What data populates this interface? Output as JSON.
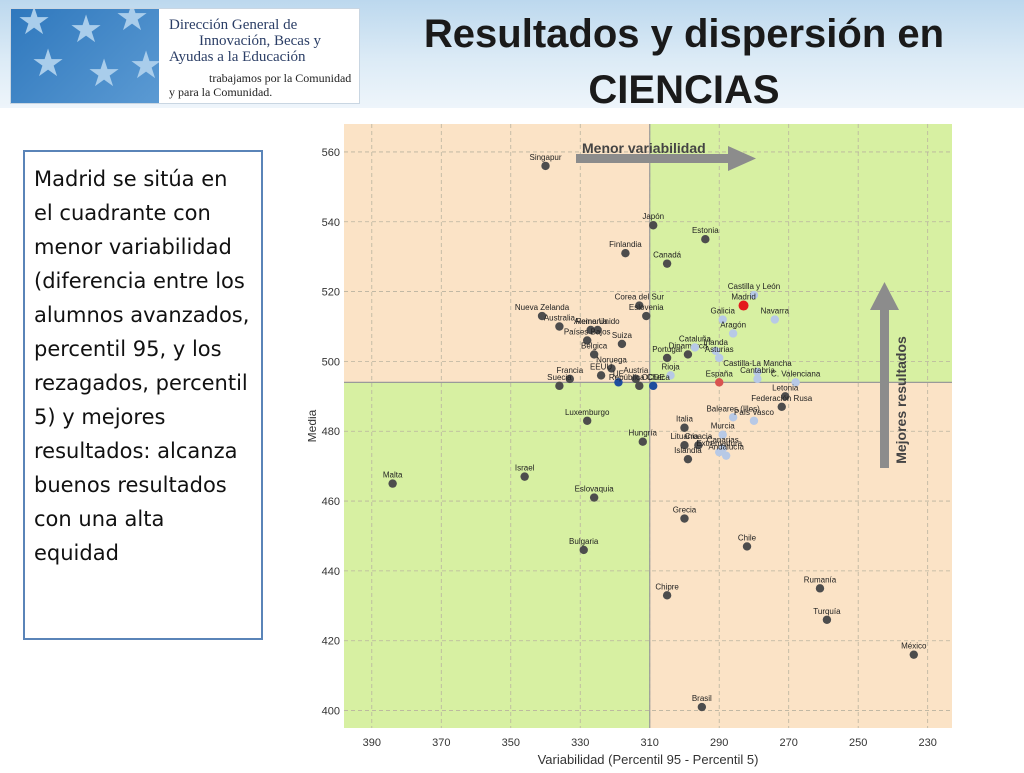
{
  "header": {
    "org_line1": "Dirección General de",
    "org_line2": "Innovación, Becas y",
    "org_line3": "Ayudas a la Educación",
    "org_line4": "trabajamos por la Comunidad",
    "org_line5": "y para la Comunidad.",
    "title_line1": "Resultados y dispersión en",
    "title_line2": "CIENCIAS"
  },
  "textbox": {
    "text": "Madrid se sitúa en el cuadrante con menor variabilidad (diferencia entre los alumnos avanzados, percentil 95, y los rezagados, percentil 5) y mejores resultados: alcanza buenos resultados con una alta equidad"
  },
  "colors": {
    "quadrant_best": "#d7f0a2",
    "quadrant_other": "#fbe3c6",
    "point": "#4d4d4d",
    "point_oecd": "#1f4e9e",
    "point_region": "#b7c9e6",
    "point_madrid": "#e41a1c",
    "point_spain": "#d9534f"
  },
  "chart_data": {
    "type": "scatter",
    "xlabel": "Variabilidad (Percentil 95 - Percentil 5)",
    "ylabel": "Media",
    "x_reversed": true,
    "xlim": [
      398,
      223
    ],
    "ylim": [
      395,
      568
    ],
    "xticks": [
      390,
      370,
      350,
      330,
      310,
      290,
      270,
      250,
      230
    ],
    "yticks": [
      400,
      420,
      440,
      460,
      480,
      500,
      520,
      540,
      560
    ],
    "reference_lines": {
      "x": 310,
      "y": 494
    },
    "grid": true,
    "annotations": {
      "arrow_x": "Menor variabilidad",
      "arrow_y": "Mejores resultados"
    },
    "points": [
      {
        "label": "Singapur",
        "x": 340,
        "y": 556,
        "kind": "country"
      },
      {
        "label": "Japón",
        "x": 309,
        "y": 539,
        "kind": "country"
      },
      {
        "label": "Estonia",
        "x": 294,
        "y": 535,
        "kind": "country"
      },
      {
        "label": "Finlandia",
        "x": 317,
        "y": 531,
        "kind": "country"
      },
      {
        "label": "Canadá",
        "x": 305,
        "y": 528,
        "kind": "country"
      },
      {
        "label": "Corea del Sur",
        "x": 313,
        "y": 516,
        "kind": "country"
      },
      {
        "label": "Eslovenia",
        "x": 311,
        "y": 513,
        "kind": "country"
      },
      {
        "label": "Nueva Zelanda",
        "x": 341,
        "y": 513,
        "kind": "country"
      },
      {
        "label": "Australia",
        "x": 336,
        "y": 510,
        "kind": "country"
      },
      {
        "label": "Alemania",
        "x": 327,
        "y": 509,
        "kind": "country"
      },
      {
        "label": "Reino Unido",
        "x": 325,
        "y": 509,
        "kind": "country"
      },
      {
        "label": "Países Bajos",
        "x": 328,
        "y": 506,
        "kind": "country"
      },
      {
        "label": "Suiza",
        "x": 318,
        "y": 505,
        "kind": "country"
      },
      {
        "label": "Bélgica",
        "x": 326,
        "y": 502,
        "kind": "country"
      },
      {
        "label": "Dinamarca",
        "x": 299,
        "y": 502,
        "kind": "country"
      },
      {
        "label": "Irlanda",
        "x": 291,
        "y": 503,
        "kind": "region"
      },
      {
        "label": "Noruega",
        "x": 321,
        "y": 498,
        "kind": "country"
      },
      {
        "label": "Portugal",
        "x": 305,
        "y": 501,
        "kind": "country"
      },
      {
        "label": "EEUU",
        "x": 324,
        "y": 496,
        "kind": "country"
      },
      {
        "label": "Francia",
        "x": 333,
        "y": 495,
        "kind": "country"
      },
      {
        "label": "Austria",
        "x": 314,
        "y": 495,
        "kind": "country"
      },
      {
        "label": "UE",
        "x": 319,
        "y": 494,
        "kind": "oecd"
      },
      {
        "label": "OCDE",
        "x": 309,
        "y": 493,
        "kind": "oecd"
      },
      {
        "label": "Rioja",
        "x": 304,
        "y": 496,
        "kind": "region"
      },
      {
        "label": "Suecia",
        "x": 336,
        "y": 493,
        "kind": "country"
      },
      {
        "label": "República Checa",
        "x": 313,
        "y": 493,
        "kind": "country"
      },
      {
        "label": "Castilla y León",
        "x": 280,
        "y": 519,
        "kind": "region"
      },
      {
        "label": "Madrid",
        "x": 283,
        "y": 516,
        "kind": "madrid"
      },
      {
        "label": "Galicia",
        "x": 289,
        "y": 512,
        "kind": "region"
      },
      {
        "label": "Navarra",
        "x": 274,
        "y": 512,
        "kind": "region"
      },
      {
        "label": "Aragón",
        "x": 286,
        "y": 508,
        "kind": "region"
      },
      {
        "label": "Cataluña",
        "x": 297,
        "y": 504,
        "kind": "region"
      },
      {
        "label": "Asturias",
        "x": 290,
        "y": 501,
        "kind": "region"
      },
      {
        "label": "Castilla-La Mancha",
        "x": 279,
        "y": 497,
        "kind": "region"
      },
      {
        "label": "C. Valenciana",
        "x": 268,
        "y": 494,
        "kind": "region"
      },
      {
        "label": "Cantabria",
        "x": 279,
        "y": 495,
        "kind": "region"
      },
      {
        "label": "España",
        "x": 290,
        "y": 494,
        "kind": "spain"
      },
      {
        "label": "Letonia",
        "x": 271,
        "y": 490,
        "kind": "country"
      },
      {
        "label": "Baleares (Illes)",
        "x": 286,
        "y": 484,
        "kind": "region"
      },
      {
        "label": "Federación Rusa",
        "x": 272,
        "y": 487,
        "kind": "country"
      },
      {
        "label": "País Vasco",
        "x": 280,
        "y": 483,
        "kind": "region"
      },
      {
        "label": "Luxemburgo",
        "x": 328,
        "y": 483,
        "kind": "country"
      },
      {
        "label": "Italia",
        "x": 300,
        "y": 481,
        "kind": "country"
      },
      {
        "label": "Murcia",
        "x": 289,
        "y": 479,
        "kind": "region"
      },
      {
        "label": "Hungría",
        "x": 312,
        "y": 477,
        "kind": "country"
      },
      {
        "label": "Lituania",
        "x": 300,
        "y": 476,
        "kind": "country"
      },
      {
        "label": "Croacia",
        "x": 296,
        "y": 476,
        "kind": "country"
      },
      {
        "label": "Canarias",
        "x": 289,
        "y": 475,
        "kind": "region"
      },
      {
        "label": "Extremadura",
        "x": 290,
        "y": 474,
        "kind": "region"
      },
      {
        "label": "Islandia",
        "x": 299,
        "y": 472,
        "kind": "country"
      },
      {
        "label": "Andalucía",
        "x": 288,
        "y": 473,
        "kind": "region"
      },
      {
        "label": "Malta",
        "x": 384,
        "y": 465,
        "kind": "country"
      },
      {
        "label": "Israel",
        "x": 346,
        "y": 467,
        "kind": "country"
      },
      {
        "label": "Eslovaquia",
        "x": 326,
        "y": 461,
        "kind": "country"
      },
      {
        "label": "Grecia",
        "x": 300,
        "y": 455,
        "kind": "country"
      },
      {
        "label": "Chile",
        "x": 282,
        "y": 447,
        "kind": "country"
      },
      {
        "label": "Bulgaria",
        "x": 329,
        "y": 446,
        "kind": "country"
      },
      {
        "label": "Chipre",
        "x": 305,
        "y": 433,
        "kind": "country"
      },
      {
        "label": "Rumanía",
        "x": 261,
        "y": 435,
        "kind": "country"
      },
      {
        "label": "Turquía",
        "x": 259,
        "y": 426,
        "kind": "country"
      },
      {
        "label": "México",
        "x": 234,
        "y": 416,
        "kind": "country"
      },
      {
        "label": "Brasil",
        "x": 295,
        "y": 401,
        "kind": "country"
      }
    ]
  }
}
